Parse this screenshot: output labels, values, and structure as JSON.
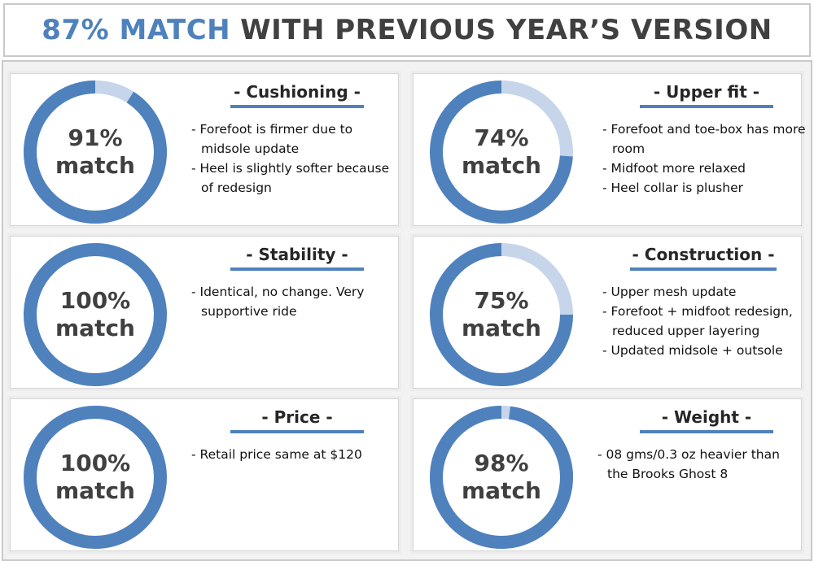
{
  "header": {
    "accent": "87% MATCH",
    "rest": "WITH PREVIOUS YEAR’S VERSION"
  },
  "colors": {
    "accent": "#4f81bd",
    "remainder": "#c6d5ea",
    "text_dark": "#404040"
  },
  "chart_data": [
    {
      "type": "pie",
      "title": "- Cushioning -",
      "value": 91,
      "label_pct": "91%",
      "label_word": "match",
      "bullets": [
        "- Forefoot is firmer due to midsole update",
        "- Heel is slightly softer because of redesign"
      ]
    },
    {
      "type": "pie",
      "title": "- Upper fit -",
      "value": 74,
      "label_pct": "74%",
      "label_word": "match",
      "bullets": [
        "- Forefoot and toe-box has more room",
        "- Midfoot more relaxed",
        "- Heel collar is plusher"
      ]
    },
    {
      "type": "pie",
      "title": "- Stability -",
      "value": 100,
      "label_pct": "100%",
      "label_word": "match",
      "bullets": [
        "- Identical, no change. Very supportive ride"
      ]
    },
    {
      "type": "pie",
      "title": "- Construction -",
      "value": 75,
      "label_pct": "75%",
      "label_word": "match",
      "bullets": [
        "- Upper mesh update",
        "- Forefoot + midfoot redesign, reduced upper layering",
        "- Updated midsole + outsole"
      ]
    },
    {
      "type": "pie",
      "title": "- Price -",
      "value": 100,
      "label_pct": "100%",
      "label_word": "match",
      "bullets": [
        "-  Retail price same at $120"
      ]
    },
    {
      "type": "pie",
      "title": "- Weight -",
      "value": 98,
      "label_pct": "98%",
      "label_word": "match",
      "bullets": [
        "- 08 gms/0.3 oz heavier than the Brooks Ghost 8"
      ]
    }
  ]
}
